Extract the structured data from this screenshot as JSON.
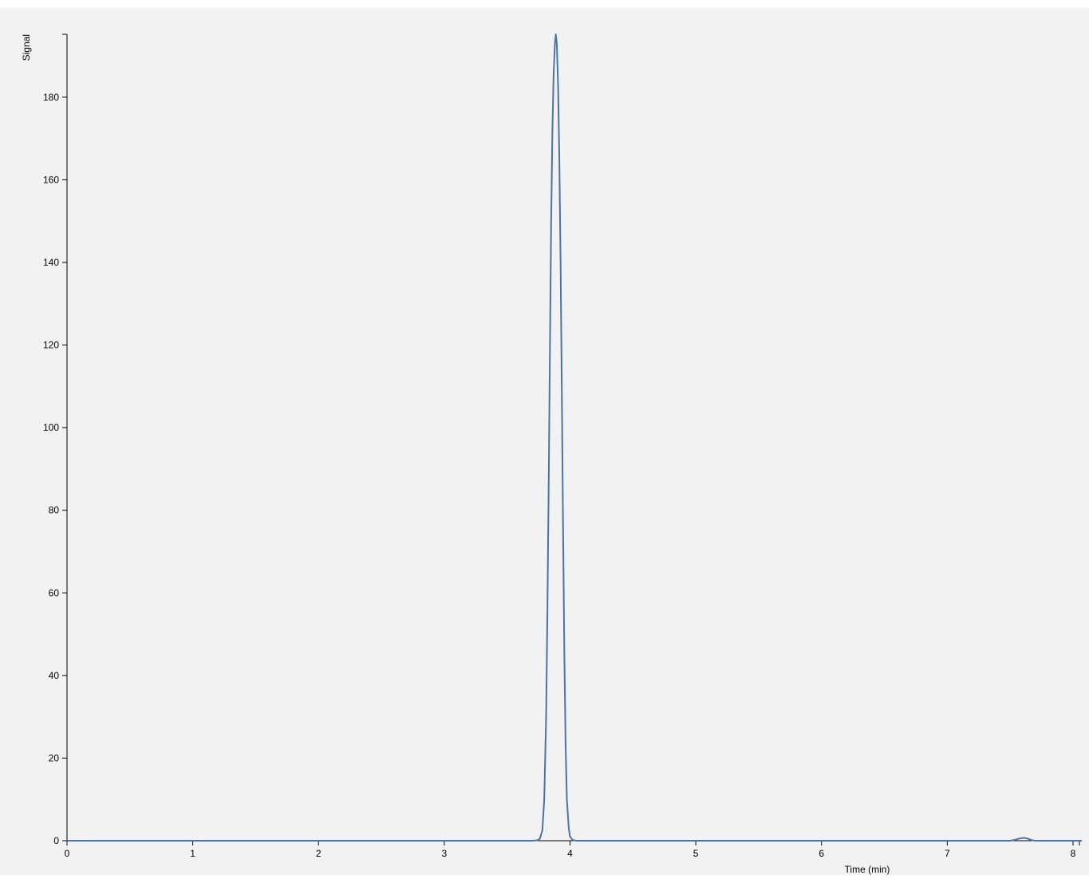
{
  "chart_data": {
    "type": "line",
    "xlabel": "Time (min)",
    "ylabel": "Signal",
    "xlim": [
      0,
      8.07
    ],
    "ylim": [
      0,
      195.8
    ],
    "x_ticks": [
      0,
      1,
      2,
      3,
      4,
      5,
      6,
      7,
      8
    ],
    "y_ticks": [
      0,
      20,
      40,
      60,
      80,
      100,
      120,
      140,
      160,
      180
    ],
    "grid": false,
    "series": [
      {
        "color": "#4a74a8",
        "points": [
          [
            0.0,
            0.0
          ],
          [
            3.7,
            0.0
          ],
          [
            3.74,
            0.1
          ],
          [
            3.76,
            0.5
          ],
          [
            3.78,
            2.5
          ],
          [
            3.795,
            10
          ],
          [
            3.81,
            30
          ],
          [
            3.82,
            55
          ],
          [
            3.83,
            85
          ],
          [
            3.84,
            118
          ],
          [
            3.85,
            150
          ],
          [
            3.86,
            172
          ],
          [
            3.87,
            186
          ],
          [
            3.88,
            193
          ],
          [
            3.887,
            195.2
          ],
          [
            3.895,
            193
          ],
          [
            3.905,
            183
          ],
          [
            3.915,
            165
          ],
          [
            3.925,
            140
          ],
          [
            3.935,
            108
          ],
          [
            3.945,
            75
          ],
          [
            3.955,
            45
          ],
          [
            3.965,
            23
          ],
          [
            3.975,
            10
          ],
          [
            3.99,
            3
          ],
          [
            4.0,
            1
          ],
          [
            4.02,
            0.2
          ],
          [
            4.05,
            0.0
          ],
          [
            7.5,
            0.0
          ],
          [
            7.53,
            0.15
          ],
          [
            7.57,
            0.5
          ],
          [
            7.61,
            0.7
          ],
          [
            7.64,
            0.5
          ],
          [
            7.67,
            0.15
          ],
          [
            7.7,
            0.0
          ],
          [
            8.07,
            0.0
          ]
        ]
      }
    ]
  }
}
